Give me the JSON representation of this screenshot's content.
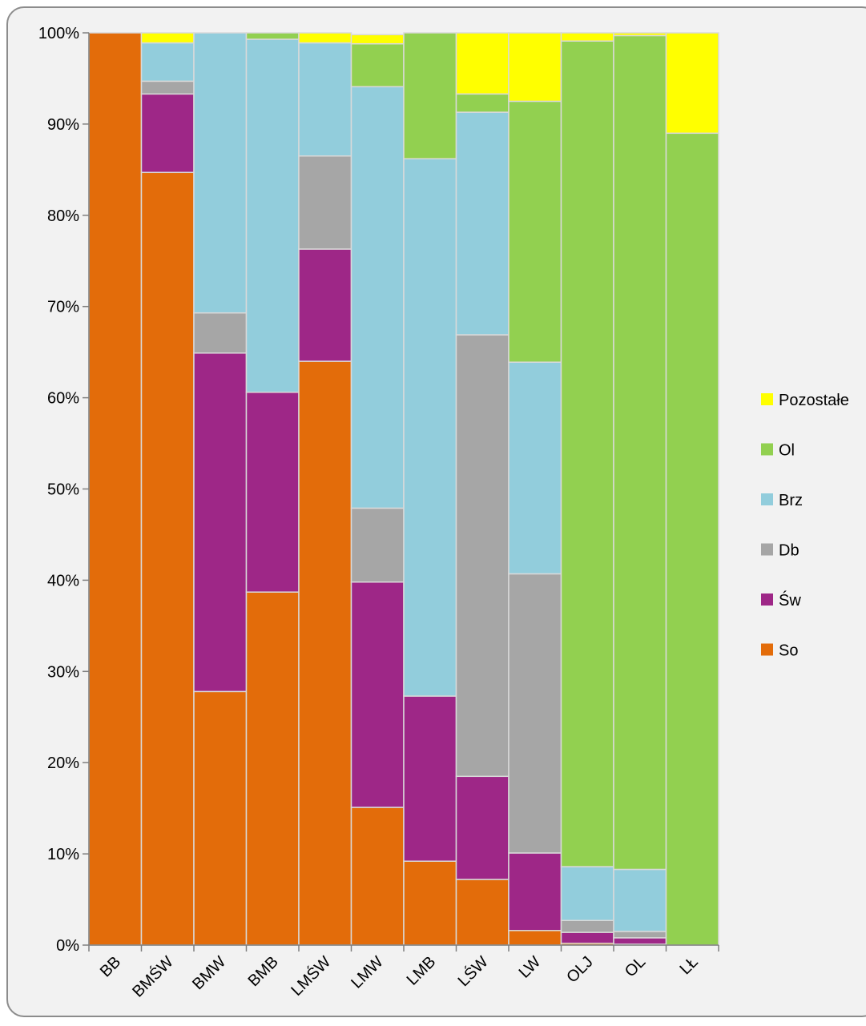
{
  "chart_data": {
    "type": "bar",
    "stacked": "percent",
    "title": "",
    "xlabel": "",
    "ylabel": "",
    "ylim": [
      0,
      100
    ],
    "y_ticks": [
      "0%",
      "10%",
      "20%",
      "30%",
      "40%",
      "50%",
      "60%",
      "70%",
      "80%",
      "90%",
      "100%"
    ],
    "grid": false,
    "legend_position": "right",
    "categories": [
      "BB",
      "BMŚW",
      "BMW",
      "BMB",
      "LMŚW",
      "LMW",
      "LMB",
      "LŚW",
      "LW",
      "OLJ",
      "OL",
      "LŁ"
    ],
    "series": [
      {
        "name": "So",
        "color": "#e36c0a",
        "values": [
          100,
          84.7,
          27.8,
          38.7,
          64.0,
          15.1,
          9.2,
          7.2,
          1.6,
          0.2,
          0.1,
          0
        ]
      },
      {
        "name": "Św",
        "color": "#9e2787",
        "values": [
          0,
          8.6,
          37.1,
          21.9,
          12.3,
          24.7,
          18.1,
          11.3,
          8.5,
          1.2,
          0.7,
          0
        ]
      },
      {
        "name": "Db",
        "color": "#a6a6a6",
        "values": [
          0,
          1.4,
          4.4,
          0,
          10.2,
          8.1,
          0,
          48.4,
          30.6,
          1.3,
          0.7,
          0
        ]
      },
      {
        "name": "Brz",
        "color": "#92cddc",
        "values": [
          0,
          4.2,
          30.7,
          38.7,
          12.4,
          46.2,
          58.9,
          24.4,
          23.2,
          5.9,
          6.8,
          0
        ]
      },
      {
        "name": "Ol",
        "color": "#92d050",
        "values": [
          0,
          0,
          0,
          0.7,
          0,
          4.7,
          13.8,
          2.0,
          28.6,
          90.5,
          91.4,
          89.0
        ]
      },
      {
        "name": "Pozostałe",
        "color": "#ffff00",
        "values": [
          0,
          1.1,
          0,
          0,
          1.1,
          1.0,
          0,
          6.7,
          7.5,
          0.9,
          0.3,
          11.0
        ]
      }
    ]
  }
}
